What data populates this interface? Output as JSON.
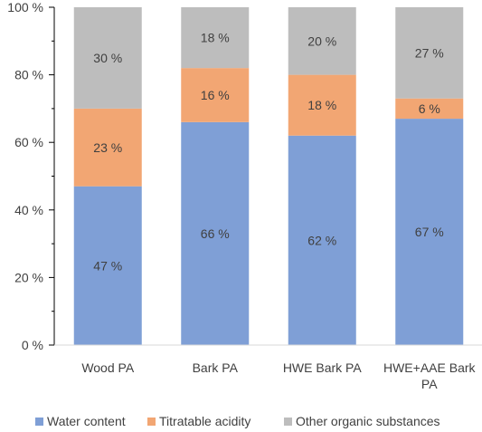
{
  "colors": {
    "water": "#7f9fd6",
    "acidity": "#f2a673",
    "other": "#bdbdbd",
    "axis": "#000000",
    "text": "#404040"
  },
  "chart_data": {
    "type": "bar",
    "stacked": true,
    "categories": [
      [
        "Wood PA"
      ],
      [
        "Bark PA"
      ],
      [
        "HWE Bark PA"
      ],
      [
        "HWE+AAE Bark",
        "PA"
      ]
    ],
    "series": [
      {
        "name": "Water content",
        "values": [
          47,
          66,
          62,
          67
        ]
      },
      {
        "name": "Titratable acidity",
        "values": [
          23,
          16,
          18,
          6
        ]
      },
      {
        "name": "Other organic substances",
        "values": [
          30,
          18,
          20,
          27
        ]
      }
    ],
    "data_labels": [
      [
        "47 %",
        "66 %",
        "62 %",
        "67 %"
      ],
      [
        "23 %",
        "16 %",
        "18 %",
        "6 %"
      ],
      [
        "30 %",
        "18 %",
        "20 %",
        "27 %"
      ]
    ],
    "y_ticks": [
      "0 %",
      "20 %",
      "40 %",
      "60 %",
      "80 %",
      "100 %"
    ],
    "ylim": [
      0,
      100
    ],
    "grid": false,
    "legend_position": "bottom"
  }
}
